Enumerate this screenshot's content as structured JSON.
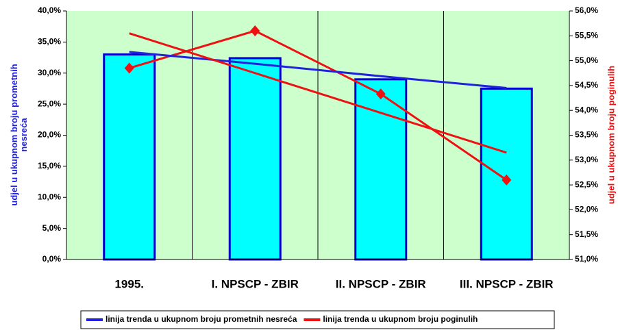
{
  "chart_data": {
    "type": "bar",
    "categories": [
      "1995.",
      "I. NPSCP - ZBIR",
      "II. NPSCP - ZBIR",
      "III. NPSCP - ZBIR"
    ],
    "ylabel": [
      "udjel u ukupnom broju prometnih",
      "nesreća"
    ],
    "y2label": "udjel u ukupnom broju poginulih",
    "series": [
      {
        "type": "bar",
        "color": "#00ffff",
        "edge": "#0000cc",
        "values": [
          33.0,
          32.4,
          29.0,
          27.5
        ]
      },
      {
        "type": "line",
        "marker": "diamond",
        "color": "#ee1111",
        "axis": "y2",
        "values": [
          54.85,
          55.6,
          54.33,
          52.6
        ]
      },
      {
        "name": "linija trenda u ukupnom broju prometnih nesreća",
        "type": "line",
        "color": "#2222dd",
        "values": [
          33.4,
          31.5,
          29.5,
          27.6
        ]
      },
      {
        "name": "linija trenda u ukupnom broju poginulih",
        "type": "line",
        "color": "#ee1111",
        "axis": "y2",
        "values": [
          55.55,
          54.75,
          53.95,
          53.15
        ]
      }
    ],
    "ylim": [
      0,
      40
    ],
    "yticks": [
      {
        "value": 0,
        "label": "0,0%"
      },
      {
        "value": 5,
        "label": "5,0%"
      },
      {
        "value": 10,
        "label": "10,0%"
      },
      {
        "value": 15,
        "label": "15,0%"
      },
      {
        "value": 20,
        "label": "20,0%"
      },
      {
        "value": 25,
        "label": "25,0%"
      },
      {
        "value": 30,
        "label": "30,0%"
      },
      {
        "value": 35,
        "label": "35,0%"
      },
      {
        "value": 40,
        "label": "40,0%"
      }
    ],
    "y2lim": [
      51,
      56
    ],
    "y2ticks": [
      {
        "value": 51,
        "label": "51,0%"
      },
      {
        "value": 51.5,
        "label": "51,5%"
      },
      {
        "value": 52,
        "label": "52,0%"
      },
      {
        "value": 52.5,
        "label": "52,5%"
      },
      {
        "value": 53,
        "label": "53,0%"
      },
      {
        "value": 53.5,
        "label": "53,5%"
      },
      {
        "value": 54,
        "label": "54,0%"
      },
      {
        "value": 54.5,
        "label": "54,5%"
      },
      {
        "value": 55,
        "label": "55,0%"
      },
      {
        "value": 55.5,
        "label": "55,5%"
      },
      {
        "value": 56,
        "label": "56,0%"
      }
    ],
    "grid": "x",
    "background": "#ccffcc",
    "legend": "bottom"
  }
}
